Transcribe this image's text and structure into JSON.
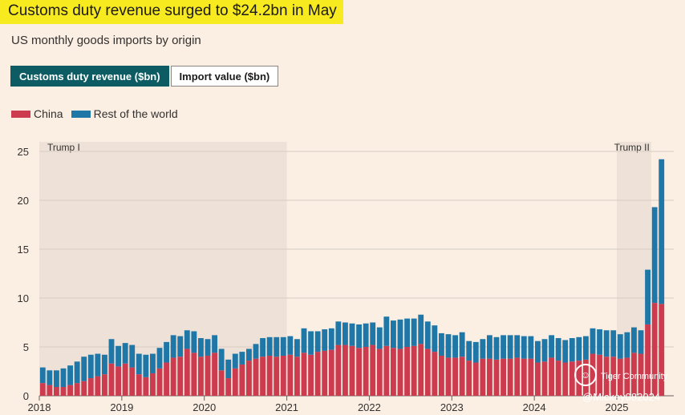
{
  "header": {
    "title": "Customs duty revenue surged to $24.2bn in May",
    "subtitle": "US monthly goods imports by origin"
  },
  "tabs": [
    {
      "label": "Customs duty revenue ($bn)",
      "active": true
    },
    {
      "label": "Import value ($bn)",
      "active": false
    }
  ],
  "colors": {
    "china": "#cd3b4f",
    "rest": "#1f77a8",
    "shade": "#eee2d8",
    "tab_active": "#0d5c63",
    "title_highlight": "#f7ea1e"
  },
  "legend": [
    {
      "label": "China",
      "color": "#cd3b4f"
    },
    {
      "label": "Rest of the world",
      "color": "#1f77a8"
    }
  ],
  "watermark": {
    "brand": "Tiger Community",
    "handle": "@Mickey082024"
  },
  "chart_data": {
    "type": "bar",
    "stacked": true,
    "ylim": [
      0,
      25
    ],
    "yticks": [
      0,
      5,
      10,
      15,
      20,
      25
    ],
    "xticks": [
      "2018",
      "2019",
      "2020",
      "2021",
      "2022",
      "2023",
      "2024",
      "2025"
    ],
    "annotations": [
      {
        "label": "Trump I",
        "start": "2018-01",
        "end": "2020-12"
      },
      {
        "label": "Trump II",
        "start": "2025-01",
        "end": "2025-05"
      }
    ],
    "start_month": "2018-01",
    "series": [
      {
        "name": "China",
        "values": [
          1.3,
          1.1,
          0.9,
          0.9,
          1.1,
          1.3,
          1.5,
          1.8,
          2.0,
          2.2,
          3.3,
          3.0,
          3.3,
          2.9,
          2.2,
          1.9,
          2.3,
          2.8,
          3.4,
          3.9,
          4.0,
          4.8,
          4.4,
          4.0,
          4.1,
          4.4,
          2.6,
          1.8,
          2.8,
          3.2,
          3.6,
          3.8,
          4.0,
          4.1,
          4.0,
          4.1,
          4.2,
          4.0,
          4.4,
          4.2,
          4.5,
          4.6,
          4.7,
          5.2,
          5.2,
          5.1,
          4.9,
          5.0,
          5.2,
          4.8,
          5.1,
          4.9,
          4.8,
          5.0,
          5.1,
          5.3,
          4.8,
          4.5,
          4.1,
          3.9,
          3.9,
          4.0,
          3.6,
          3.4,
          3.8,
          3.8,
          3.7,
          3.8,
          3.8,
          3.9,
          3.8,
          3.8,
          3.4,
          3.5,
          3.9,
          3.6,
          3.4,
          3.5,
          3.6,
          3.7,
          4.3,
          4.2,
          4.0,
          4.0,
          3.8,
          3.9,
          4.4,
          4.3,
          7.3,
          9.5,
          9.4
        ]
      },
      {
        "name": "Rest of the world",
        "values": [
          1.6,
          1.5,
          1.7,
          1.9,
          2.0,
          2.2,
          2.5,
          2.4,
          2.3,
          2.0,
          2.5,
          2.1,
          2.1,
          2.3,
          2.1,
          2.3,
          2.0,
          2.1,
          2.1,
          2.3,
          2.1,
          1.9,
          2.2,
          1.9,
          1.7,
          1.8,
          2.2,
          1.9,
          1.5,
          1.3,
          1.2,
          1.5,
          1.9,
          1.9,
          2.0,
          1.9,
          1.9,
          1.8,
          2.5,
          2.4,
          2.1,
          2.2,
          2.2,
          2.4,
          2.3,
          2.3,
          2.4,
          2.4,
          2.3,
          2.2,
          3.0,
          2.8,
          3.0,
          2.9,
          2.8,
          3.0,
          2.8,
          2.7,
          2.3,
          2.4,
          2.3,
          2.5,
          2.0,
          2.1,
          2.0,
          2.4,
          2.3,
          2.4,
          2.4,
          2.3,
          2.3,
          2.3,
          2.2,
          2.3,
          2.3,
          2.3,
          2.3,
          2.4,
          2.4,
          2.4,
          2.6,
          2.6,
          2.7,
          2.7,
          2.5,
          2.6,
          2.6,
          2.4,
          5.6,
          9.8,
          14.8
        ]
      }
    ]
  }
}
